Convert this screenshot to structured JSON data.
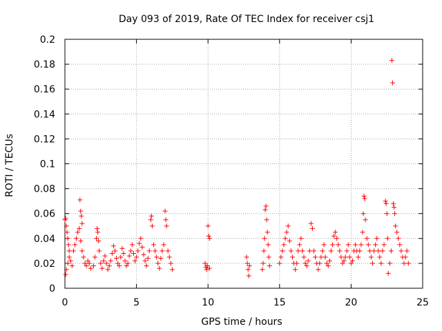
{
  "chart_data": {
    "type": "scatter",
    "title": "Day 093 of 2019, Rate Of TEC Index for receiver csj1",
    "xlabel": "GPS time / hours",
    "ylabel": "ROTI / TECUs",
    "xlim": [
      0,
      25
    ],
    "ylim": [
      0,
      0.2
    ],
    "xticks": [
      0,
      5,
      10,
      15,
      20,
      25
    ],
    "yticks": [
      0,
      0.02,
      0.04,
      0.06,
      0.08,
      0.1,
      0.12,
      0.14,
      0.16,
      0.18,
      0.2
    ],
    "xtick_labels": [
      "0",
      "5",
      "10",
      "15",
      "20",
      "25"
    ],
    "ytick_labels": [
      "0",
      "0.02",
      "0.04",
      "0.06",
      "0.08",
      "0.1",
      "0.12",
      "0.14",
      "0.16",
      "0.18",
      "0.2"
    ],
    "grid": true,
    "marker": "+",
    "series_color": "#ff0000",
    "series": [
      {
        "name": "ROTI",
        "points": [
          [
            0.0,
            0.055
          ],
          [
            0.05,
            0.056
          ],
          [
            0.1,
            0.05
          ],
          [
            0.15,
            0.045
          ],
          [
            0.2,
            0.04
          ],
          [
            0.25,
            0.035
          ],
          [
            0.3,
            0.03
          ],
          [
            0.05,
            0.011
          ],
          [
            0.1,
            0.015
          ],
          [
            0.2,
            0.02
          ],
          [
            0.3,
            0.025
          ],
          [
            0.4,
            0.022
          ],
          [
            0.5,
            0.018
          ],
          [
            0.6,
            0.03
          ],
          [
            0.7,
            0.035
          ],
          [
            0.8,
            0.04
          ],
          [
            0.9,
            0.045
          ],
          [
            1.0,
            0.048
          ],
          [
            1.05,
            0.071
          ],
          [
            1.1,
            0.062
          ],
          [
            1.15,
            0.058
          ],
          [
            1.2,
            0.052
          ],
          [
            1.1,
            0.038
          ],
          [
            1.2,
            0.03
          ],
          [
            1.3,
            0.025
          ],
          [
            1.4,
            0.02
          ],
          [
            1.5,
            0.018
          ],
          [
            1.6,
            0.022
          ],
          [
            1.7,
            0.02
          ],
          [
            1.8,
            0.016
          ],
          [
            2.0,
            0.018
          ],
          [
            2.1,
            0.025
          ],
          [
            2.2,
            0.04
          ],
          [
            2.25,
            0.048
          ],
          [
            2.3,
            0.045
          ],
          [
            2.35,
            0.038
          ],
          [
            2.4,
            0.03
          ],
          [
            2.5,
            0.02
          ],
          [
            2.6,
            0.016
          ],
          [
            2.7,
            0.022
          ],
          [
            2.8,
            0.026
          ],
          [
            2.9,
            0.02
          ],
          [
            3.0,
            0.015
          ],
          [
            3.1,
            0.018
          ],
          [
            3.2,
            0.022
          ],
          [
            3.3,
            0.028
          ],
          [
            3.4,
            0.034
          ],
          [
            3.5,
            0.03
          ],
          [
            3.6,
            0.024
          ],
          [
            3.7,
            0.02
          ],
          [
            3.8,
            0.018
          ],
          [
            3.9,
            0.025
          ],
          [
            4.0,
            0.032
          ],
          [
            4.1,
            0.028
          ],
          [
            4.2,
            0.022
          ],
          [
            4.3,
            0.018
          ],
          [
            4.4,
            0.02
          ],
          [
            4.5,
            0.026
          ],
          [
            4.6,
            0.03
          ],
          [
            4.7,
            0.035
          ],
          [
            4.8,
            0.028
          ],
          [
            4.9,
            0.022
          ],
          [
            5.0,
            0.025
          ],
          [
            5.1,
            0.03
          ],
          [
            5.2,
            0.036
          ],
          [
            5.3,
            0.04
          ],
          [
            5.4,
            0.033
          ],
          [
            5.5,
            0.027
          ],
          [
            5.6,
            0.022
          ],
          [
            5.7,
            0.018
          ],
          [
            5.8,
            0.024
          ],
          [
            5.9,
            0.03
          ],
          [
            6.0,
            0.055
          ],
          [
            6.05,
            0.058
          ],
          [
            6.1,
            0.05
          ],
          [
            6.2,
            0.035
          ],
          [
            6.3,
            0.03
          ],
          [
            6.4,
            0.025
          ],
          [
            6.5,
            0.02
          ],
          [
            6.6,
            0.016
          ],
          [
            6.7,
            0.024
          ],
          [
            6.8,
            0.03
          ],
          [
            6.9,
            0.035
          ],
          [
            7.0,
            0.062
          ],
          [
            7.05,
            0.055
          ],
          [
            7.1,
            0.05
          ],
          [
            7.2,
            0.03
          ],
          [
            7.3,
            0.025
          ],
          [
            7.4,
            0.02
          ],
          [
            7.5,
            0.015
          ],
          [
            9.8,
            0.02
          ],
          [
            9.85,
            0.017
          ],
          [
            9.9,
            0.015
          ],
          [
            9.95,
            0.018
          ],
          [
            10.0,
            0.05
          ],
          [
            10.05,
            0.042
          ],
          [
            10.1,
            0.04
          ],
          [
            10.1,
            0.016
          ],
          [
            12.7,
            0.025
          ],
          [
            12.75,
            0.02
          ],
          [
            12.8,
            0.015
          ],
          [
            12.85,
            0.01
          ],
          [
            12.9,
            0.018
          ],
          [
            13.8,
            0.015
          ],
          [
            13.85,
            0.02
          ],
          [
            13.9,
            0.03
          ],
          [
            13.95,
            0.04
          ],
          [
            14.0,
            0.063
          ],
          [
            14.05,
            0.066
          ],
          [
            14.1,
            0.055
          ],
          [
            14.15,
            0.045
          ],
          [
            14.2,
            0.035
          ],
          [
            14.25,
            0.025
          ],
          [
            14.3,
            0.018
          ],
          [
            15.0,
            0.02
          ],
          [
            15.1,
            0.025
          ],
          [
            15.2,
            0.03
          ],
          [
            15.3,
            0.035
          ],
          [
            15.4,
            0.04
          ],
          [
            15.5,
            0.045
          ],
          [
            15.6,
            0.05
          ],
          [
            15.7,
            0.038
          ],
          [
            15.8,
            0.03
          ],
          [
            15.9,
            0.025
          ],
          [
            16.0,
            0.02
          ],
          [
            16.1,
            0.015
          ],
          [
            16.2,
            0.02
          ],
          [
            16.3,
            0.03
          ],
          [
            16.4,
            0.035
          ],
          [
            16.5,
            0.04
          ],
          [
            16.6,
            0.03
          ],
          [
            16.7,
            0.025
          ],
          [
            16.8,
            0.02
          ],
          [
            16.9,
            0.018
          ],
          [
            17.0,
            0.022
          ],
          [
            17.1,
            0.03
          ],
          [
            17.2,
            0.052
          ],
          [
            17.3,
            0.048
          ],
          [
            17.4,
            0.03
          ],
          [
            17.5,
            0.025
          ],
          [
            17.6,
            0.02
          ],
          [
            17.7,
            0.015
          ],
          [
            17.8,
            0.02
          ],
          [
            17.9,
            0.025
          ],
          [
            18.0,
            0.03
          ],
          [
            18.1,
            0.035
          ],
          [
            18.2,
            0.025
          ],
          [
            18.3,
            0.02
          ],
          [
            18.4,
            0.018
          ],
          [
            18.5,
            0.022
          ],
          [
            18.6,
            0.03
          ],
          [
            18.7,
            0.035
          ],
          [
            18.8,
            0.042
          ],
          [
            18.9,
            0.045
          ],
          [
            19.0,
            0.04
          ],
          [
            19.1,
            0.035
          ],
          [
            19.2,
            0.03
          ],
          [
            19.3,
            0.025
          ],
          [
            19.4,
            0.02
          ],
          [
            19.5,
            0.022
          ],
          [
            19.6,
            0.025
          ],
          [
            19.7,
            0.03
          ],
          [
            19.8,
            0.035
          ],
          [
            19.9,
            0.025
          ],
          [
            20.0,
            0.02
          ],
          [
            20.1,
            0.022
          ],
          [
            20.2,
            0.03
          ],
          [
            20.3,
            0.035
          ],
          [
            20.4,
            0.03
          ],
          [
            20.5,
            0.025
          ],
          [
            20.6,
            0.03
          ],
          [
            20.7,
            0.035
          ],
          [
            20.8,
            0.045
          ],
          [
            20.85,
            0.06
          ],
          [
            20.9,
            0.074
          ],
          [
            20.95,
            0.072
          ],
          [
            21.0,
            0.055
          ],
          [
            21.1,
            0.04
          ],
          [
            21.2,
            0.035
          ],
          [
            21.3,
            0.03
          ],
          [
            21.4,
            0.025
          ],
          [
            21.5,
            0.02
          ],
          [
            21.6,
            0.03
          ],
          [
            21.7,
            0.035
          ],
          [
            21.8,
            0.04
          ],
          [
            21.9,
            0.03
          ],
          [
            22.0,
            0.025
          ],
          [
            22.1,
            0.02
          ],
          [
            22.2,
            0.03
          ],
          [
            22.3,
            0.035
          ],
          [
            22.4,
            0.07
          ],
          [
            22.45,
            0.068
          ],
          [
            22.5,
            0.06
          ],
          [
            22.55,
            0.04
          ],
          [
            22.6,
            0.012
          ],
          [
            22.7,
            0.02
          ],
          [
            22.8,
            0.03
          ],
          [
            22.85,
            0.183
          ],
          [
            22.9,
            0.165
          ],
          [
            22.95,
            0.068
          ],
          [
            23.0,
            0.065
          ],
          [
            23.05,
            0.06
          ],
          [
            23.1,
            0.05
          ],
          [
            23.2,
            0.045
          ],
          [
            23.3,
            0.04
          ],
          [
            23.4,
            0.035
          ],
          [
            23.5,
            0.03
          ],
          [
            23.6,
            0.025
          ],
          [
            23.7,
            0.02
          ],
          [
            23.8,
            0.025
          ],
          [
            23.9,
            0.03
          ],
          [
            24.0,
            0.02
          ]
        ]
      }
    ]
  }
}
